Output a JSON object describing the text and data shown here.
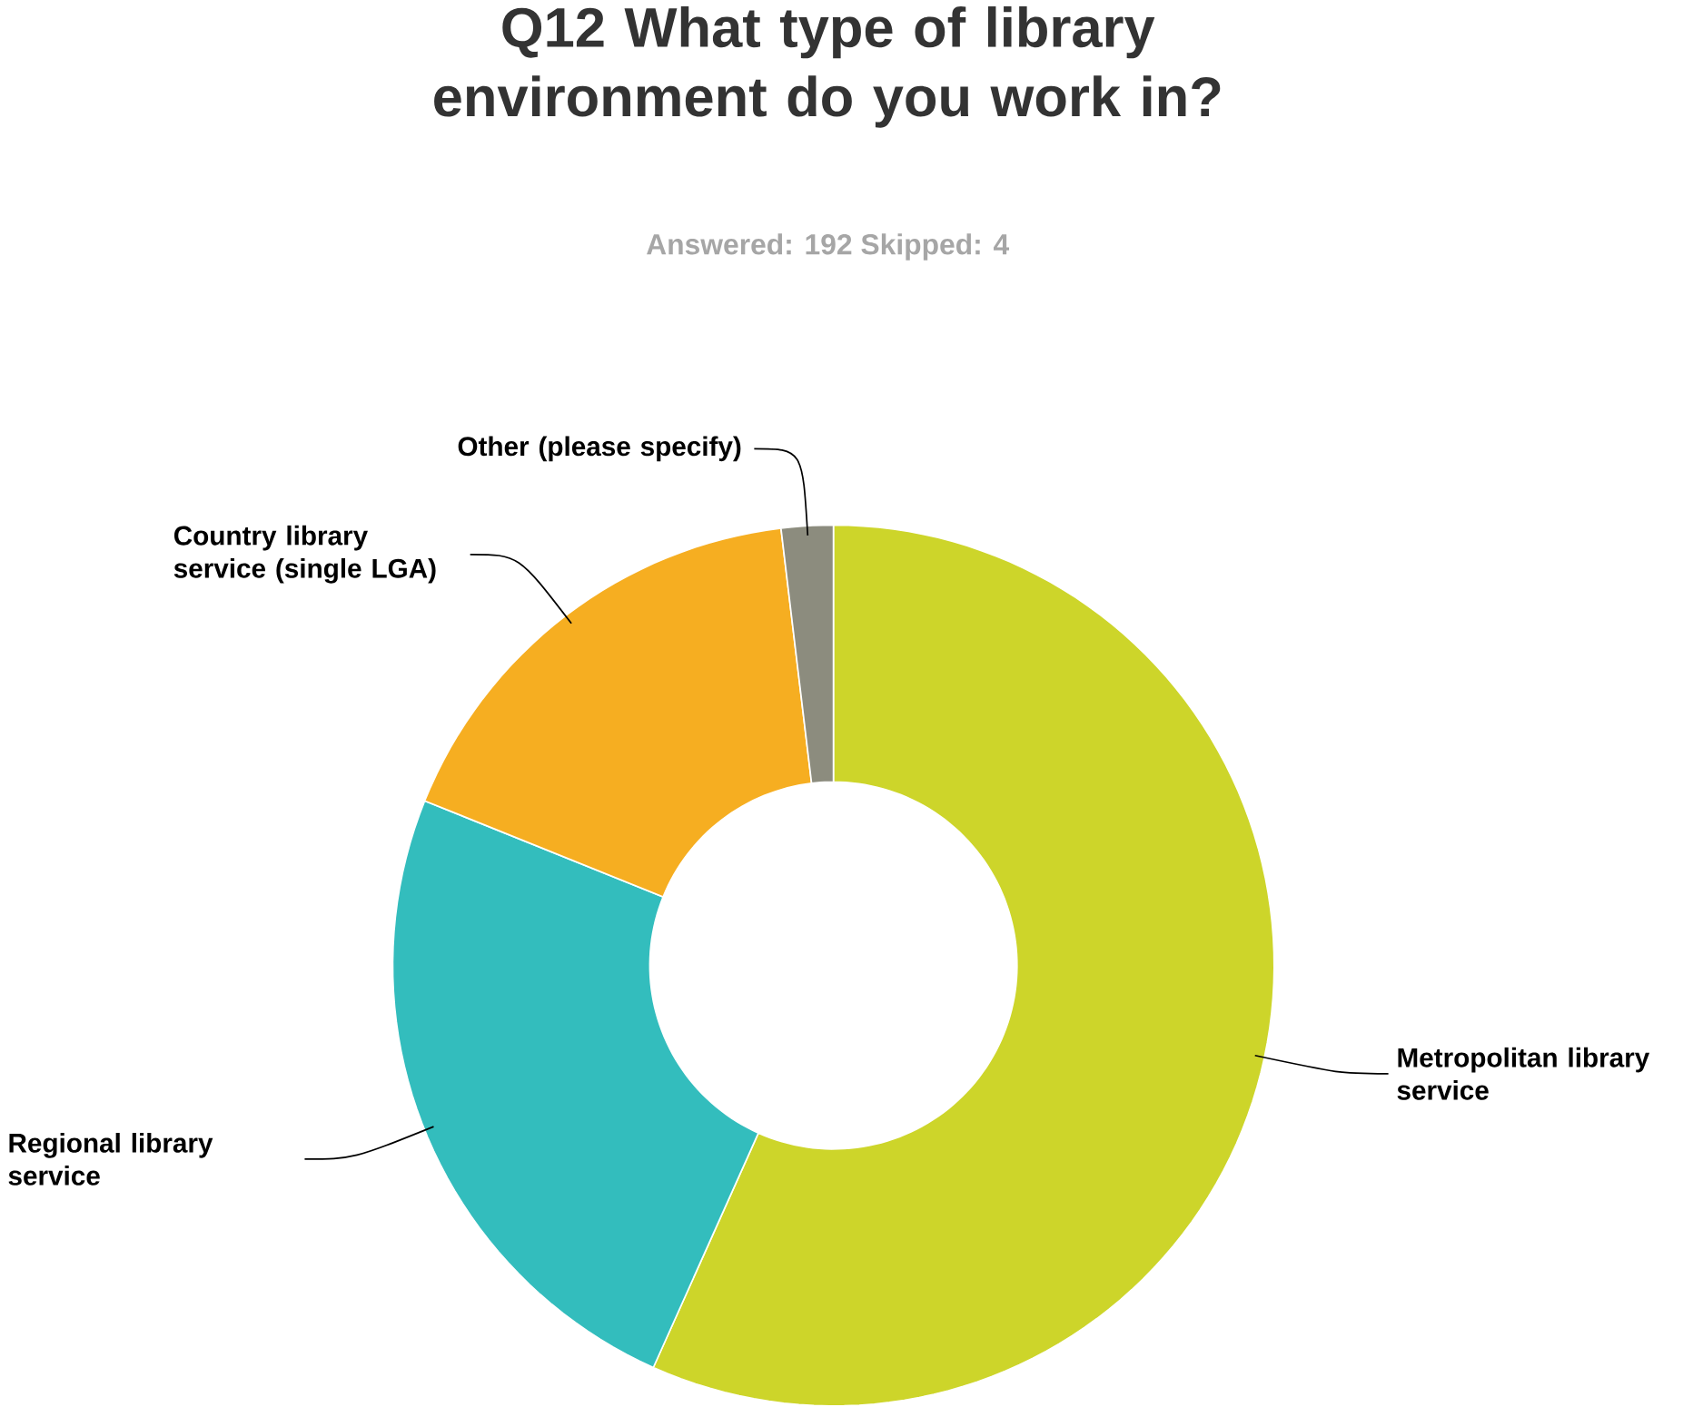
{
  "chart_data": {
    "type": "donut",
    "title": "Q12 What type of library environment do you work in?",
    "subtitle": "Answered: 192    Skipped: 4",
    "categories": [
      "Metropolitan library service",
      "Regional library service",
      "Country library service (single LGA)",
      "Other (please specify)"
    ],
    "values": [
      56.7,
      24.4,
      17.0,
      1.9
    ],
    "colors": [
      "#cdd52a",
      "#33bdbd",
      "#f6ae21",
      "#8c8c7e"
    ]
  }
}
